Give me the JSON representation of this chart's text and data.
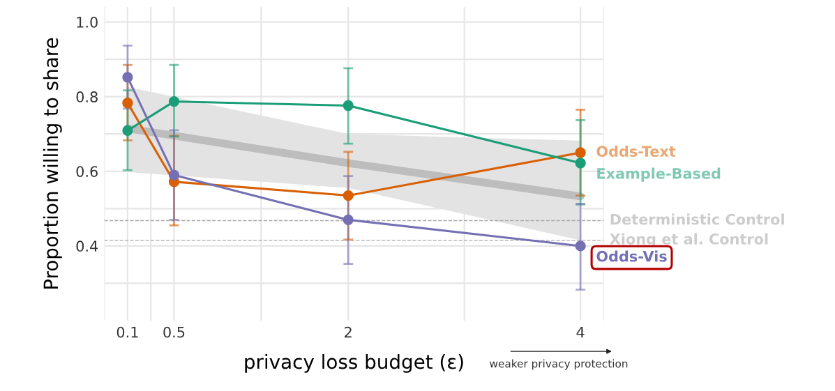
{
  "chart_data": {
    "type": "line",
    "xlabel": "privacy loss budget (ε)",
    "ylabel": "Proportion willing to share",
    "x": [
      0.1,
      0.5,
      2,
      4
    ],
    "series": [
      {
        "name": null,
        "color": "#bdbdbd",
        "x": [
          0.1,
          2,
          4
        ],
        "values": [
          0.715,
          0.622,
          0.533
        ],
        "lower": [
          0.598,
          0.555,
          0.415
        ],
        "upper": [
          0.826,
          0.7,
          0.682
        ],
        "marker": "none"
      },
      {
        "name": "Odds-Text",
        "color": "#d95f02",
        "values": [
          0.783,
          0.572,
          0.535,
          0.65
        ],
        "errors": [
          [
            0.683,
            0.885
          ],
          [
            0.455,
            0.695
          ],
          [
            0.417,
            0.652
          ],
          [
            0.535,
            0.765
          ]
        ]
      },
      {
        "name": "Example-Based",
        "color": "#1b9e77",
        "values": [
          0.709,
          0.787,
          0.776,
          0.622
        ],
        "errors": [
          [
            0.603,
            0.817
          ],
          [
            0.693,
            0.885
          ],
          [
            0.674,
            0.876
          ],
          [
            0.511,
            0.737
          ]
        ]
      },
      {
        "name": "Odds-Vis",
        "color": "#7570b3",
        "values": [
          0.852,
          0.59,
          0.47,
          0.4
        ],
        "errors": [
          [
            0.768,
            0.937
          ],
          [
            0.47,
            0.71
          ],
          [
            0.352,
            0.587
          ],
          [
            0.283,
            0.513
          ]
        ]
      }
    ],
    "ref_lines": [
      {
        "axis": "y",
        "value": 0.468,
        "label": "Deterministic Control",
        "color": "#aaaaaa",
        "line_style": "dashed"
      },
      {
        "axis": "y",
        "value": 0.415,
        "label": "Xiong et al. Control",
        "color": "#aaaaaa",
        "line_style": "dashed"
      }
    ],
    "annotations": [
      "weaker privacy protection"
    ],
    "xlim": [
      -0.1,
      4.2
    ],
    "ylim": [
      0.2,
      1.04
    ],
    "xticks": [
      {
        "value": -0.1,
        "label": null
      },
      0.1,
      {
        "value": 0.3,
        "label": null
      },
      0.5,
      {
        "value": 1.25,
        "label": null
      },
      2,
      {
        "value": 3,
        "label": null
      },
      4,
      {
        "value": 4.2,
        "label": null
      }
    ],
    "yticks": [
      {
        "value": 0.3,
        "label": null
      },
      0.4,
      {
        "value": 0.5,
        "label": null
      },
      0.6,
      {
        "value": 0.7,
        "label": null
      },
      0.8,
      {
        "value": 0.9,
        "label": null
      },
      {
        "value": 1.0,
        "label": "1.0"
      }
    ],
    "grid": true,
    "legend": false,
    "marker": "circle",
    "line_style": "solid"
  }
}
